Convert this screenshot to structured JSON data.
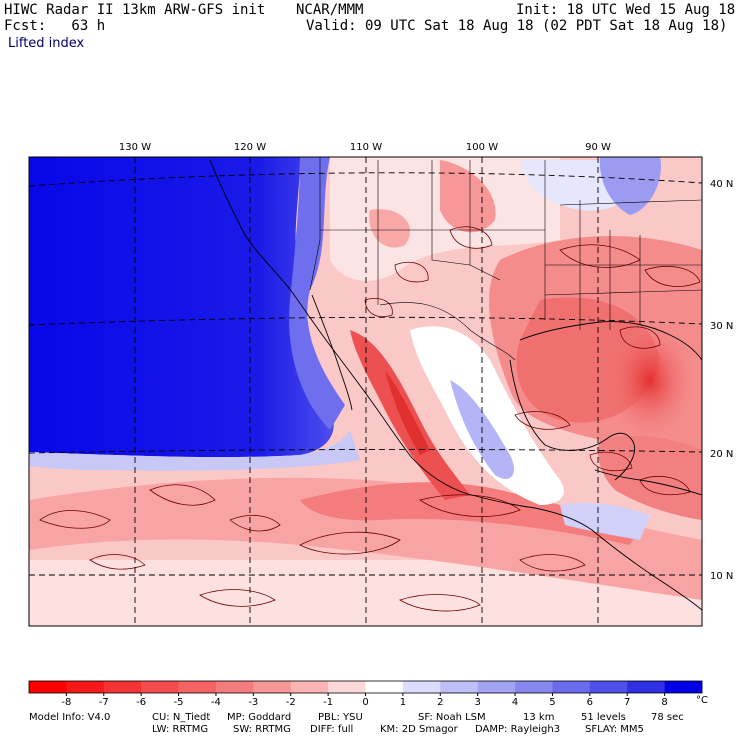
{
  "header": {
    "line1_left": "HIWC Radar II 13km ARW-GFS init",
    "line1_mid": "NCAR/MMM",
    "line1_right": "Init: 18 UTC Wed 15 Aug 18",
    "line2_left": "Fcst:   63 h",
    "line2_right": "Valid: 09 UTC Sat 18 Aug 18 (02 PDT Sat 18 Aug 18)",
    "field": "Lifted index"
  },
  "map": {
    "lon_labels": [
      "130 W",
      "120 W",
      "110 W",
      "100 W",
      "90 W"
    ],
    "lat_labels": [
      "40 N",
      "30 N",
      "20 N",
      "10 N"
    ]
  },
  "colorbar": {
    "tick_labels": [
      "-8",
      "-7",
      "-6",
      "-5",
      "-4",
      "-3",
      "-2",
      "-1",
      "0",
      "1",
      "2",
      "3",
      "4",
      "5",
      "6",
      "7",
      "8"
    ],
    "unit": "°C",
    "colors": [
      "#ff0000",
      "#f71818",
      "#f43434",
      "#f44c4c",
      "#f46464",
      "#f47c7c",
      "#f79797",
      "#fab4b4",
      "#fdd8d8",
      "#ffffff",
      "#dcdcff",
      "#bfbff7",
      "#a3a3f4",
      "#8787f0",
      "#6b6bed",
      "#4f4fe9",
      "#2f2fe6",
      "#0000e6"
    ]
  },
  "footer": {
    "row1": [
      "Model Info: V4.0",
      "CU: N_Tiedt",
      "MP: Goddard",
      "PBL: YSU",
      "SF: Noah LSM",
      "13 km",
      "51 levels",
      "78 sec"
    ],
    "row2": [
      "LW: RRTMG",
      "SW: RRTMG",
      "DIFF: full",
      "KM: 2D Smagor",
      "DAMP: Rayleigh3",
      "SFLAY: MM5"
    ]
  }
}
